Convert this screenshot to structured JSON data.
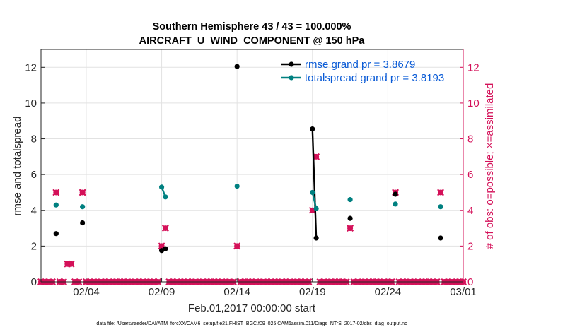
{
  "chart_data": {
    "type": "line",
    "title_line1": "Southern Hemisphere 43 / 43 = 100.000%",
    "title_line2": "AIRCRAFT_U_WIND_COMPONENT @ 150 hPa",
    "xlabel": "Feb.01,2017 00:00:00 start",
    "ylabel_left": "rmse and totalspread",
    "ylabel_right": "# of obs: o=possible; ×=assimilated",
    "footer": "data file: /Users/raeder/DAI/ATM_forcXX/CAM6_setup/f.e21.FHIST_BGC.f09_025.CAM6assim.011/Diags_NTrS_2017-02/obs_diag_output.nc",
    "x_range_days": [
      0,
      28
    ],
    "ylim_left": [
      0,
      13
    ],
    "ylim_right": [
      0,
      13
    ],
    "x_ticks": [
      {
        "day": 3,
        "label": "02/04"
      },
      {
        "day": 8,
        "label": "02/09"
      },
      {
        "day": 13,
        "label": "02/14"
      },
      {
        "day": 18,
        "label": "02/19"
      },
      {
        "day": 23,
        "label": "02/24"
      },
      {
        "day": 28,
        "label": "03/01"
      }
    ],
    "y_ticks_left": [
      0,
      2,
      4,
      6,
      8,
      10,
      12
    ],
    "y_ticks_right": [
      0,
      2,
      4,
      6,
      8,
      10,
      12
    ],
    "legend": [
      {
        "label": "rmse grand pr = 3.8679",
        "color": "#000000"
      },
      {
        "label": "totalspread grand pr = 3.8193",
        "color": "#008080"
      }
    ],
    "colors": {
      "rmse": "#000000",
      "spread": "#008080",
      "obs": "#d41159",
      "legend_text": "#0a5bd6"
    },
    "series": [
      {
        "name": "rmse",
        "segments": [
          [
            [
              1.0,
              2.7
            ]
          ],
          [
            [
              2.75,
              3.3
            ]
          ],
          [
            [
              8.0,
              1.75
            ],
            [
              8.25,
              1.85
            ]
          ],
          [
            [
              13.0,
              12.05
            ]
          ],
          [
            [
              18.0,
              8.55
            ],
            [
              18.25,
              2.45
            ]
          ],
          [
            [
              20.5,
              3.55
            ]
          ],
          [
            [
              23.5,
              4.9
            ]
          ],
          [
            [
              26.5,
              2.45
            ]
          ]
        ]
      },
      {
        "name": "totalspread",
        "segments": [
          [
            [
              1.0,
              4.3
            ]
          ],
          [
            [
              2.75,
              4.2
            ]
          ],
          [
            [
              8.0,
              5.3
            ],
            [
              8.25,
              4.75
            ]
          ],
          [
            [
              13.0,
              5.35
            ]
          ],
          [
            [
              18.0,
              5.0
            ],
            [
              18.25,
              4.1
            ]
          ],
          [
            [
              20.5,
              4.6
            ]
          ],
          [
            [
              23.5,
              4.35
            ]
          ],
          [
            [
              26.5,
              4.2
            ]
          ]
        ]
      }
    ],
    "obs_possible": {
      "step_days": 0.25,
      "nonzero": {
        "1.0": 5,
        "1.75": 1,
        "2.0": 1,
        "2.75": 5,
        "8.0": 2,
        "8.25": 3,
        "13.0": 2,
        "18.0": 4,
        "18.25": 7,
        "20.5": 3,
        "23.5": 5,
        "26.5": 5
      }
    }
  }
}
